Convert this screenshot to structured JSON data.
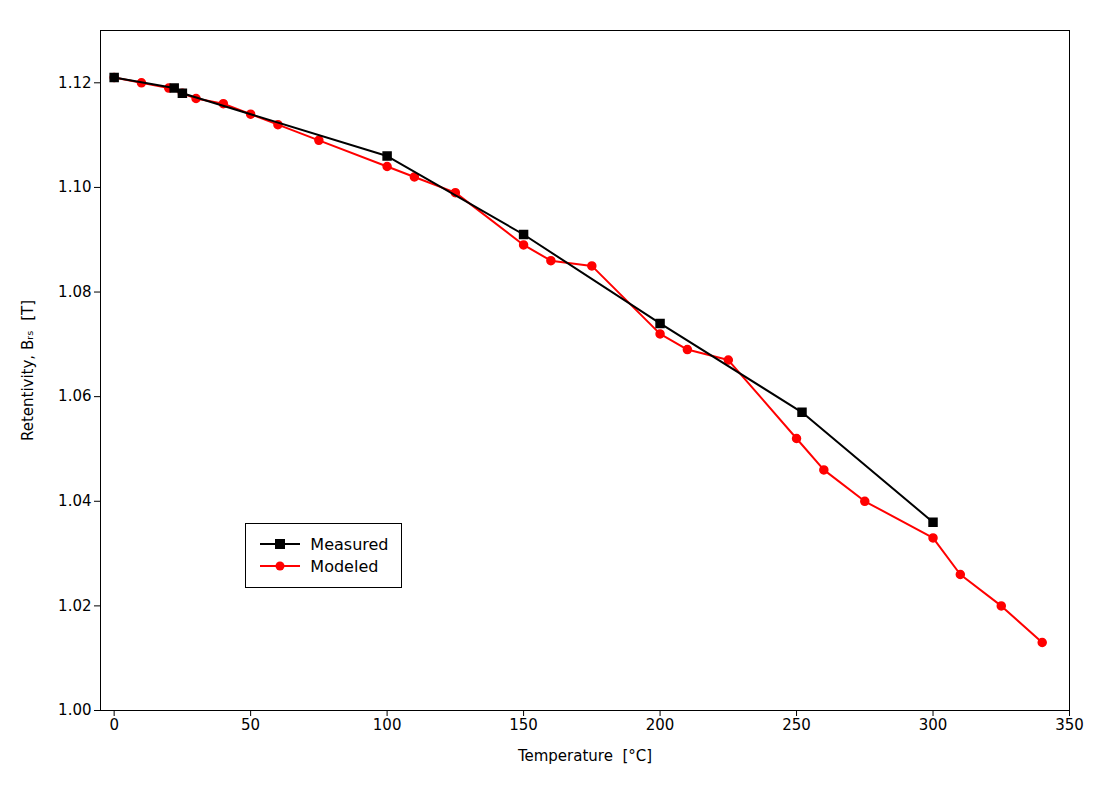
{
  "chart_data": {
    "type": "line",
    "xlabel": "Temperature  [°C]",
    "ylabel": "Retentivity, Bᵣₛ  [T]",
    "series": [
      {
        "name": "Measured",
        "color": "#000000",
        "marker": "square",
        "line_style": "solid",
        "x": [
          0,
          22,
          25,
          100,
          150,
          200,
          252,
          300
        ],
        "values": [
          1.121,
          1.119,
          1.118,
          1.106,
          1.091,
          1.074,
          1.057,
          1.036
        ]
      },
      {
        "name": "Modeled",
        "color": "#FF0000",
        "marker": "circle",
        "line_style": "solid",
        "x": [
          0,
          10,
          20,
          25,
          30,
          40,
          50,
          60,
          75,
          100,
          110,
          125,
          150,
          160,
          175,
          200,
          210,
          225,
          250,
          260,
          275,
          300,
          310,
          325,
          340
        ],
        "values": [
          1.121,
          1.12,
          1.119,
          1.118,
          1.117,
          1.116,
          1.114,
          1.112,
          1.109,
          1.104,
          1.102,
          1.099,
          1.089,
          1.086,
          1.085,
          1.072,
          1.069,
          1.067,
          1.052,
          1.046,
          1.04,
          1.033,
          1.026,
          1.02,
          1.013
        ]
      }
    ],
    "xlim": [
      -5,
      350
    ],
    "ylim": [
      1.0,
      1.13
    ],
    "xticks": [
      0,
      50,
      100,
      150,
      200,
      250,
      300,
      350
    ],
    "yticks": [
      {
        "value": 1.0,
        "label": "1.00"
      },
      1.02,
      1.04,
      1.06,
      1.08,
      {
        "value": 1.1,
        "label": "1.10"
      },
      1.12
    ],
    "grid": false,
    "legend": "lower left"
  }
}
